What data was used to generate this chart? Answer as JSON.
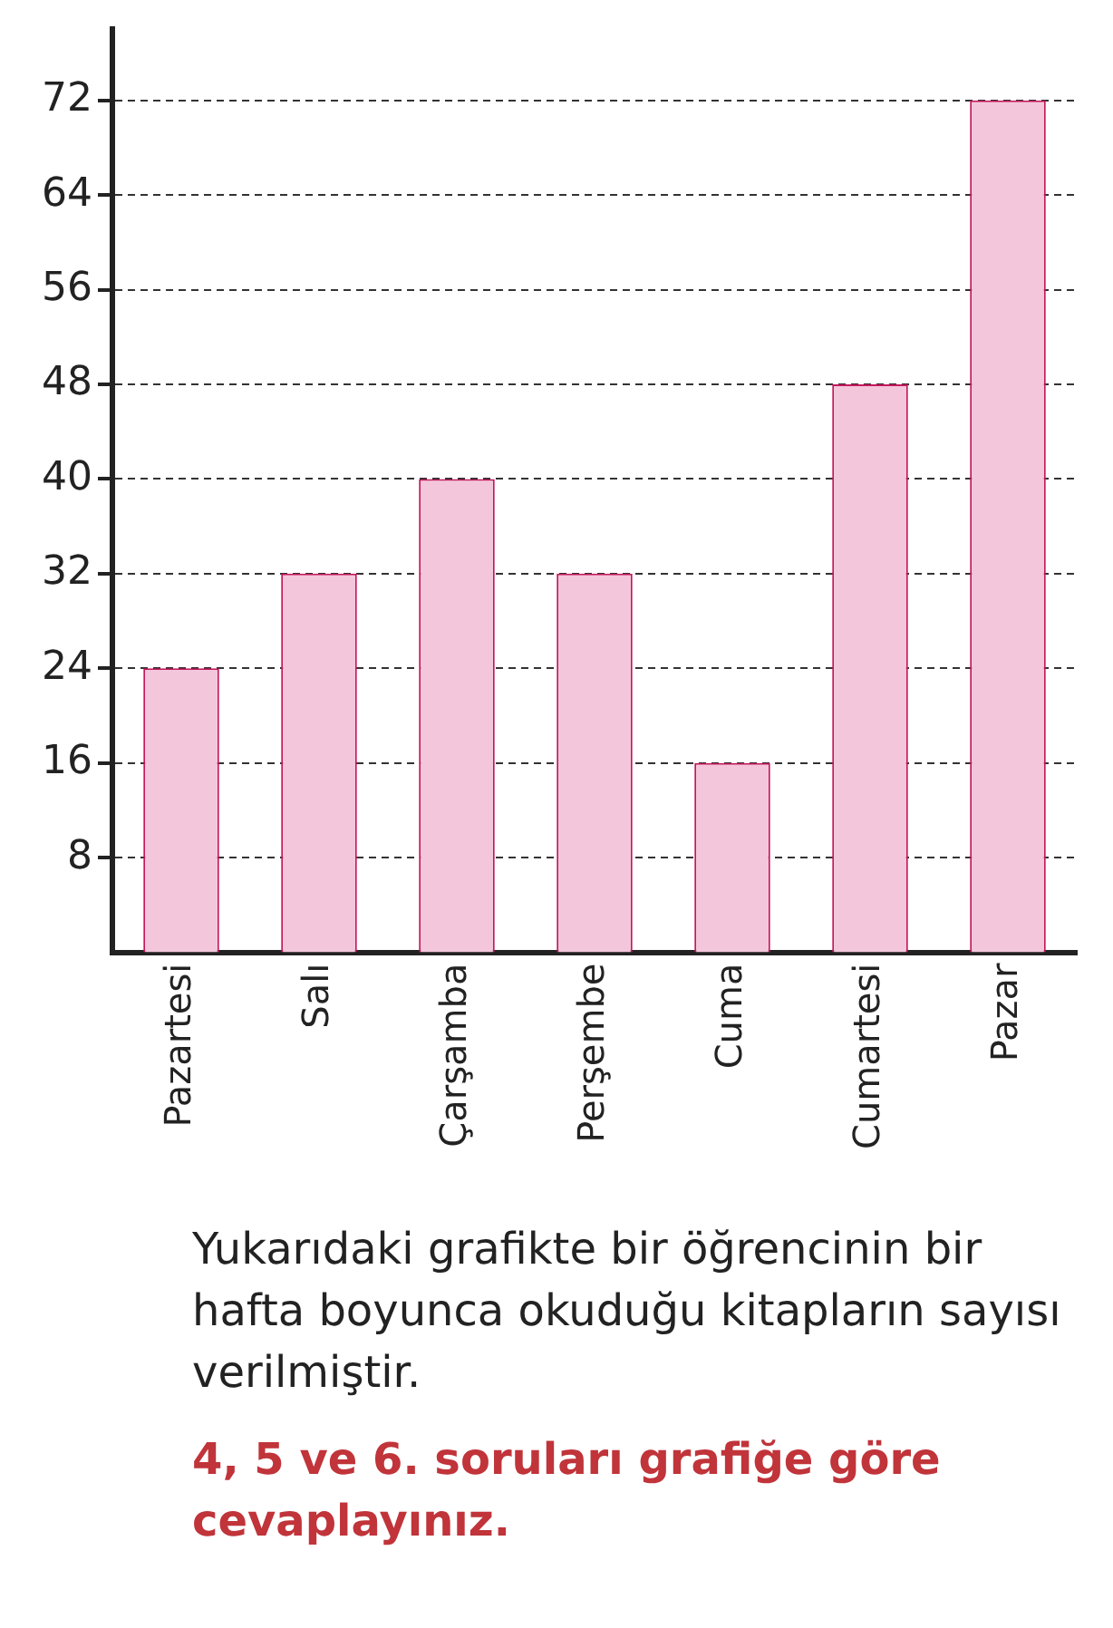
{
  "chart_data": {
    "type": "bar",
    "categories": [
      "Pazartesi",
      "Salı",
      "Çarşamba",
      "Perşembe",
      "Cuma",
      "Cumartesi",
      "Pazar"
    ],
    "values": [
      24,
      32,
      40,
      32,
      16,
      48,
      72
    ],
    "color": "#f4c6dc",
    "ylim": [
      0,
      78
    ],
    "yticks": [
      8,
      16,
      24,
      32,
      40,
      48,
      56,
      64,
      72
    ],
    "grid": "y",
    "annotations": [
      "Yukarıdaki grafikte bir öğrencinin bir hafta boyunca okuduğu kitapların sayısı verilmiştir.",
      "4, 5 ve 6. soruları grafiğe göre cevaplayınız."
    ]
  }
}
